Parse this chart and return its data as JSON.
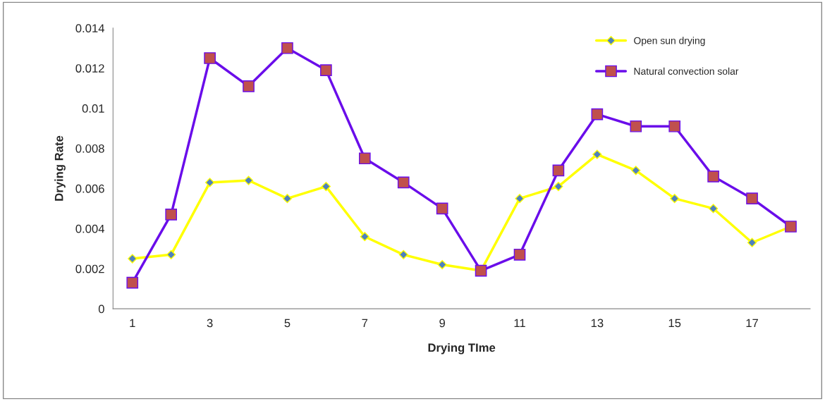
{
  "chart_data": {
    "type": "line",
    "xlabel": "Drying TIme",
    "ylabel": "Drying Rate",
    "categories": [
      "1",
      null,
      "3",
      null,
      "5",
      null,
      "7",
      null,
      "9",
      null,
      "11",
      null,
      "13",
      null,
      "15",
      null,
      "17",
      null
    ],
    "series": [
      {
        "name": "Open sun drying",
        "color": "#ffff00",
        "marker": "diamond",
        "values": [
          0.0025,
          0.0027,
          0.0063,
          0.0064,
          0.0055,
          0.0061,
          0.0036,
          0.0027,
          0.0022,
          0.0019,
          0.0055,
          0.0061,
          0.0077,
          0.0069,
          0.0055,
          0.005,
          0.0033,
          0.0041
        ]
      },
      {
        "name": "Natural convection solar",
        "color": "#6a0dea",
        "marker": "square",
        "values": [
          0.0013,
          0.0047,
          0.0125,
          0.0111,
          0.013,
          0.0119,
          0.0075,
          0.0063,
          0.005,
          0.0019,
          0.0027,
          0.0069,
          0.0097,
          0.0091,
          0.0091,
          0.0066,
          0.0055,
          0.0041
        ]
      }
    ],
    "ylim": [
      0,
      0.014
    ],
    "yticks": [
      0,
      0.002,
      0.004,
      0.006,
      0.008,
      0.01,
      0.012,
      0.014
    ],
    "grid": false,
    "legend": "top right"
  }
}
